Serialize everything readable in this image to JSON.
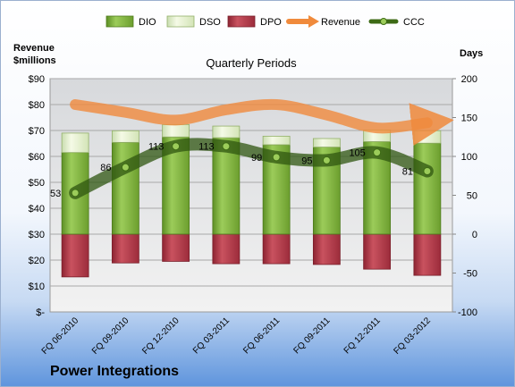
{
  "chart_data": {
    "type": "bar",
    "title": "Quarterly Periods",
    "company": "Power Integrations",
    "left_axis_label": "Revenue\n$millions",
    "right_axis_label": "Days",
    "left_axis_ticks": [
      "$-",
      "$10",
      "$20",
      "$30",
      "$40",
      "$50",
      "$60",
      "$70",
      "$80",
      "$90"
    ],
    "right_axis_ticks": [
      "-100",
      "-50",
      "0",
      "50",
      "100",
      "150",
      "200"
    ],
    "ylim_left": [
      0,
      90
    ],
    "ylim_right": [
      -100,
      200
    ],
    "categories": [
      "FQ 06-2010",
      "FQ 09-2010",
      "FQ 12-2010",
      "FQ 03-2011",
      "FQ 06-2011",
      "FQ 09-2011",
      "FQ 12-2011",
      "FQ 03-2012"
    ],
    "legend_position": "top",
    "grid": true,
    "series": [
      {
        "name": "DIO",
        "axis": "right",
        "kind": "stacked-bar",
        "color": "#7fb13f",
        "values": [
          105,
          118,
          125,
          124,
          115,
          112,
          119,
          117
        ]
      },
      {
        "name": "DSO",
        "axis": "right",
        "kind": "stacked-bar",
        "color": "#e8f2c8",
        "values": [
          25,
          15,
          16,
          15,
          11,
          11,
          15,
          16
        ]
      },
      {
        "name": "DPO",
        "axis": "right",
        "kind": "stacked-bar",
        "color": "#b5394a",
        "values": [
          -55,
          -37,
          -35,
          -38,
          -38,
          -39,
          -45,
          -53
        ]
      },
      {
        "name": "Revenue",
        "axis": "left",
        "kind": "line",
        "color": "#f08a3c",
        "values": [
          80,
          77,
          74,
          78,
          80,
          76,
          71,
          73
        ]
      },
      {
        "name": "CCC",
        "axis": "right",
        "kind": "line",
        "color": "#4a7a1e",
        "values": [
          53,
          86,
          113,
          113,
          99,
          95,
          105,
          81
        ]
      }
    ],
    "ccc_labels": [
      "53",
      "86",
      "113",
      "113",
      "99",
      "95",
      "105",
      "81"
    ]
  }
}
